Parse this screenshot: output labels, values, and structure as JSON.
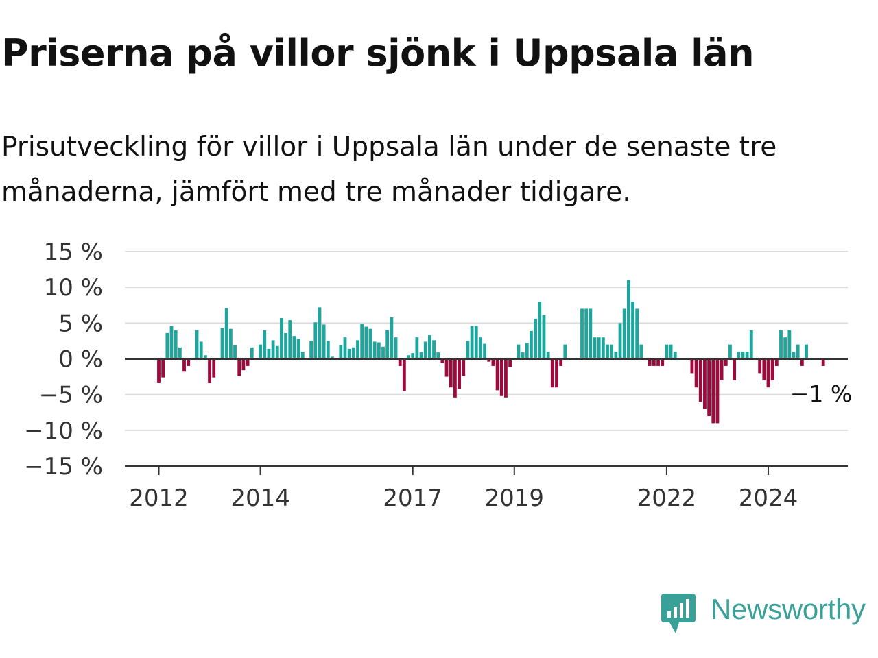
{
  "title": "Priserna på villor sjönk i Uppsala län",
  "subtitle": "Prisutveckling för villor i Uppsala län under de senaste tre månaderna, jämfört med tre månader tidigare.",
  "brand": {
    "name": "Newsworthy",
    "color": "#3aa198"
  },
  "colors": {
    "positive": "#1fa59c",
    "negative": "#9e0a3c",
    "grid": "#dddddd",
    "axis": "#333333",
    "text": "#333333"
  },
  "chart_data": {
    "type": "bar",
    "title": "Priserna på villor sjönk i Uppsala län",
    "subtitle": "Prisutveckling för villor i Uppsala län under de senaste tre månaderna, jämfört med tre månader tidigare.",
    "ylim": [
      -15,
      15
    ],
    "y_ticks": [
      {
        "value": 15,
        "label": "15 %"
      },
      {
        "value": 10,
        "label": "10 %"
      },
      {
        "value": 5,
        "label": "5 %"
      },
      {
        "value": 0,
        "label": "0 %"
      },
      {
        "value": -5,
        "label": "−5 %"
      },
      {
        "value": -10,
        "label": "−10 %"
      },
      {
        "value": -15,
        "label": "−15 %"
      }
    ],
    "x_start": "2012-01",
    "x_ticks": [
      {
        "date": "2012-01",
        "label": "2012"
      },
      {
        "date": "2014-01",
        "label": "2014"
      },
      {
        "date": "2017-01",
        "label": "2017"
      },
      {
        "date": "2019-01",
        "label": "2019"
      },
      {
        "date": "2022-01",
        "label": "2022"
      },
      {
        "date": "2024-01",
        "label": "2024"
      }
    ],
    "grid": true,
    "last_value_label": "−1 %",
    "values": [
      -3.4,
      -2.6,
      3.6,
      4.6,
      4.0,
      1.6,
      -1.8,
      -1.0,
      null,
      4.0,
      2.4,
      0.5,
      -3.4,
      -2.6,
      null,
      4.3,
      7.1,
      4.2,
      1.9,
      -2.4,
      -1.6,
      -1.0,
      1.6,
      null,
      2.0,
      4.0,
      1.4,
      2.6,
      1.8,
      5.7,
      3.6,
      5.4,
      3.2,
      2.8,
      1.0,
      null,
      2.5,
      5.1,
      7.2,
      4.8,
      2.5,
      0.3,
      null,
      1.9,
      3.0,
      1.4,
      1.6,
      2.6,
      4.9,
      4.5,
      4.2,
      2.4,
      2.3,
      1.7,
      4.0,
      5.8,
      3.0,
      -1.0,
      -4.5,
      0.5,
      0.8,
      3.0,
      0.9,
      2.4,
      3.3,
      2.6,
      0.9,
      -0.6,
      -2.5,
      -4.0,
      -5.4,
      -4.2,
      -2.4,
      2.5,
      4.6,
      4.6,
      3.0,
      2.1,
      -0.4,
      -1.0,
      -4.4,
      -5.2,
      -5.4,
      -1.2,
      null,
      2.0,
      0.9,
      2.2,
      3.9,
      5.6,
      8.0,
      6.1,
      1.0,
      -4.0,
      -4.0,
      -1.0,
      2.0,
      null,
      null,
      null,
      7.0,
      7.0,
      7.0,
      3.0,
      3.0,
      3.0,
      2.0,
      2.0,
      1.0,
      5.0,
      7.0,
      11.0,
      8.0,
      7.0,
      2.0,
      null,
      -1.0,
      -1.0,
      -1.0,
      -1.0,
      2.0,
      2.0,
      1.0,
      null,
      null,
      null,
      -2.0,
      -4.0,
      -6.0,
      -7.0,
      -8.0,
      -9.0,
      -9.0,
      -3.0,
      -1.0,
      2.0,
      -3.0,
      1.0,
      1.0,
      1.0,
      4.0,
      null,
      -2.0,
      -3.0,
      -4.0,
      -3.0,
      -1.0,
      4.0,
      3.0,
      4.0,
      1.0,
      2.0,
      -1.0,
      2.0,
      null,
      null,
      null,
      -1.0
    ]
  }
}
